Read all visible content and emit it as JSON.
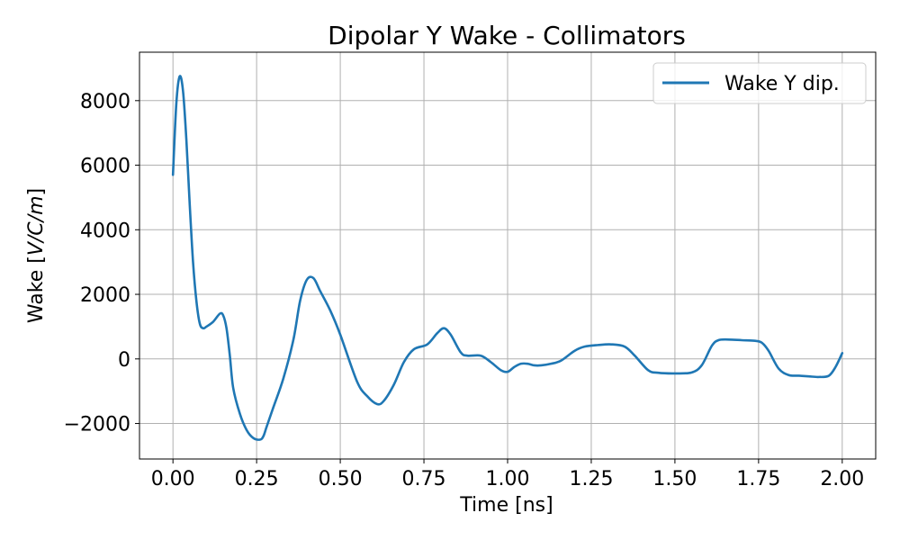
{
  "chart_data": {
    "type": "line",
    "title": "Dipolar Y Wake - Collimators",
    "xlabel": "Time [ns]",
    "ylabel_prefix": "Wake [",
    "ylabel_math": "V/C/m",
    "ylabel_suffix": "]",
    "xlim": [
      -0.1,
      2.1
    ],
    "ylim": [
      -3100,
      9500
    ],
    "xticks": [
      0.0,
      0.25,
      0.5,
      0.75,
      1.0,
      1.25,
      1.5,
      1.75,
      2.0
    ],
    "xtick_labels": [
      "0.00",
      "0.25",
      "0.50",
      "0.75",
      "1.00",
      "1.25",
      "1.50",
      "1.75",
      "2.00"
    ],
    "yticks": [
      -2000,
      0,
      2000,
      4000,
      6000,
      8000
    ],
    "ytick_labels": [
      "−2000",
      "0",
      "2000",
      "4000",
      "6000",
      "8000"
    ],
    "grid": true,
    "legend_position": "upper-right",
    "series": [
      {
        "name": "Wake Y dip.",
        "color": "#1f77b4",
        "x": [
          0.0,
          0.01,
          0.02,
          0.03,
          0.04,
          0.05,
          0.06,
          0.07,
          0.08,
          0.09,
          0.1,
          0.12,
          0.14,
          0.15,
          0.16,
          0.17,
          0.18,
          0.2,
          0.22,
          0.24,
          0.26,
          0.27,
          0.28,
          0.3,
          0.33,
          0.36,
          0.38,
          0.4,
          0.42,
          0.44,
          0.47,
          0.5,
          0.55,
          0.58,
          0.61,
          0.63,
          0.66,
          0.69,
          0.72,
          0.76,
          0.79,
          0.81,
          0.83,
          0.86,
          0.88,
          0.92,
          0.95,
          0.98,
          1.0,
          1.02,
          1.04,
          1.06,
          1.08,
          1.1,
          1.13,
          1.16,
          1.2,
          1.23,
          1.27,
          1.31,
          1.35,
          1.38,
          1.42,
          1.45,
          1.5,
          1.55,
          1.58,
          1.61,
          1.63,
          1.66,
          1.7,
          1.74,
          1.76,
          1.78,
          1.81,
          1.84,
          1.87,
          1.9,
          1.93,
          1.96,
          1.98,
          2.0
        ],
        "y": [
          5700,
          7900,
          8750,
          8300,
          6800,
          4800,
          3000,
          1800,
          1100,
          950,
          1000,
          1150,
          1400,
          1350,
          950,
          100,
          -900,
          -1700,
          -2200,
          -2450,
          -2500,
          -2400,
          -2100,
          -1500,
          -600,
          600,
          1800,
          2450,
          2500,
          2100,
          1500,
          750,
          -700,
          -1150,
          -1400,
          -1300,
          -800,
          -100,
          300,
          450,
          800,
          950,
          750,
          200,
          100,
          100,
          -100,
          -350,
          -400,
          -250,
          -150,
          -150,
          -200,
          -200,
          -150,
          -50,
          250,
          380,
          430,
          450,
          380,
          100,
          -350,
          -430,
          -450,
          -420,
          -200,
          400,
          580,
          600,
          580,
          560,
          500,
          250,
          -300,
          -500,
          -520,
          -540,
          -560,
          -520,
          -250,
          180
        ]
      }
    ]
  }
}
